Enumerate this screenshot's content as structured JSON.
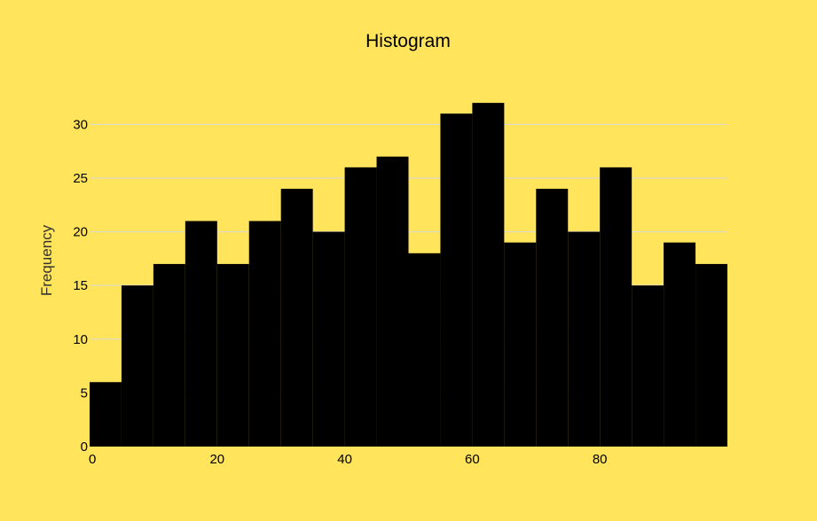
{
  "chart_data": {
    "type": "histogram",
    "title": "Histogram",
    "xlabel": "",
    "ylabel": "Frequency",
    "bin_width": 5,
    "bins": [
      {
        "start": 0,
        "end": 5,
        "count": 6
      },
      {
        "start": 5,
        "end": 10,
        "count": 15
      },
      {
        "start": 10,
        "end": 15,
        "count": 17
      },
      {
        "start": 15,
        "end": 20,
        "count": 21
      },
      {
        "start": 20,
        "end": 25,
        "count": 17
      },
      {
        "start": 25,
        "end": 30,
        "count": 21
      },
      {
        "start": 30,
        "end": 35,
        "count": 24
      },
      {
        "start": 35,
        "end": 40,
        "count": 20
      },
      {
        "start": 40,
        "end": 45,
        "count": 26
      },
      {
        "start": 45,
        "end": 50,
        "count": 27
      },
      {
        "start": 50,
        "end": 55,
        "count": 18
      },
      {
        "start": 55,
        "end": 60,
        "count": 31
      },
      {
        "start": 60,
        "end": 65,
        "count": 32
      },
      {
        "start": 65,
        "end": 70,
        "count": 19
      },
      {
        "start": 70,
        "end": 75,
        "count": 24
      },
      {
        "start": 75,
        "end": 80,
        "count": 20
      },
      {
        "start": 80,
        "end": 85,
        "count": 26
      },
      {
        "start": 85,
        "end": 90,
        "count": 15
      },
      {
        "start": 90,
        "end": 95,
        "count": 19
      },
      {
        "start": 95,
        "end": 100,
        "count": 17
      }
    ],
    "xlim": [
      0,
      100
    ],
    "ylim": [
      0,
      33
    ],
    "xticks": [
      0,
      20,
      40,
      60,
      80
    ],
    "yticks": [
      0,
      5,
      10,
      15,
      20,
      25,
      30
    ],
    "grid": "horizontal",
    "legend": "none",
    "colors": {
      "background": "#FFE45C",
      "bar": "#000000",
      "grid": "#D9D9D9",
      "text": "#000000"
    }
  }
}
